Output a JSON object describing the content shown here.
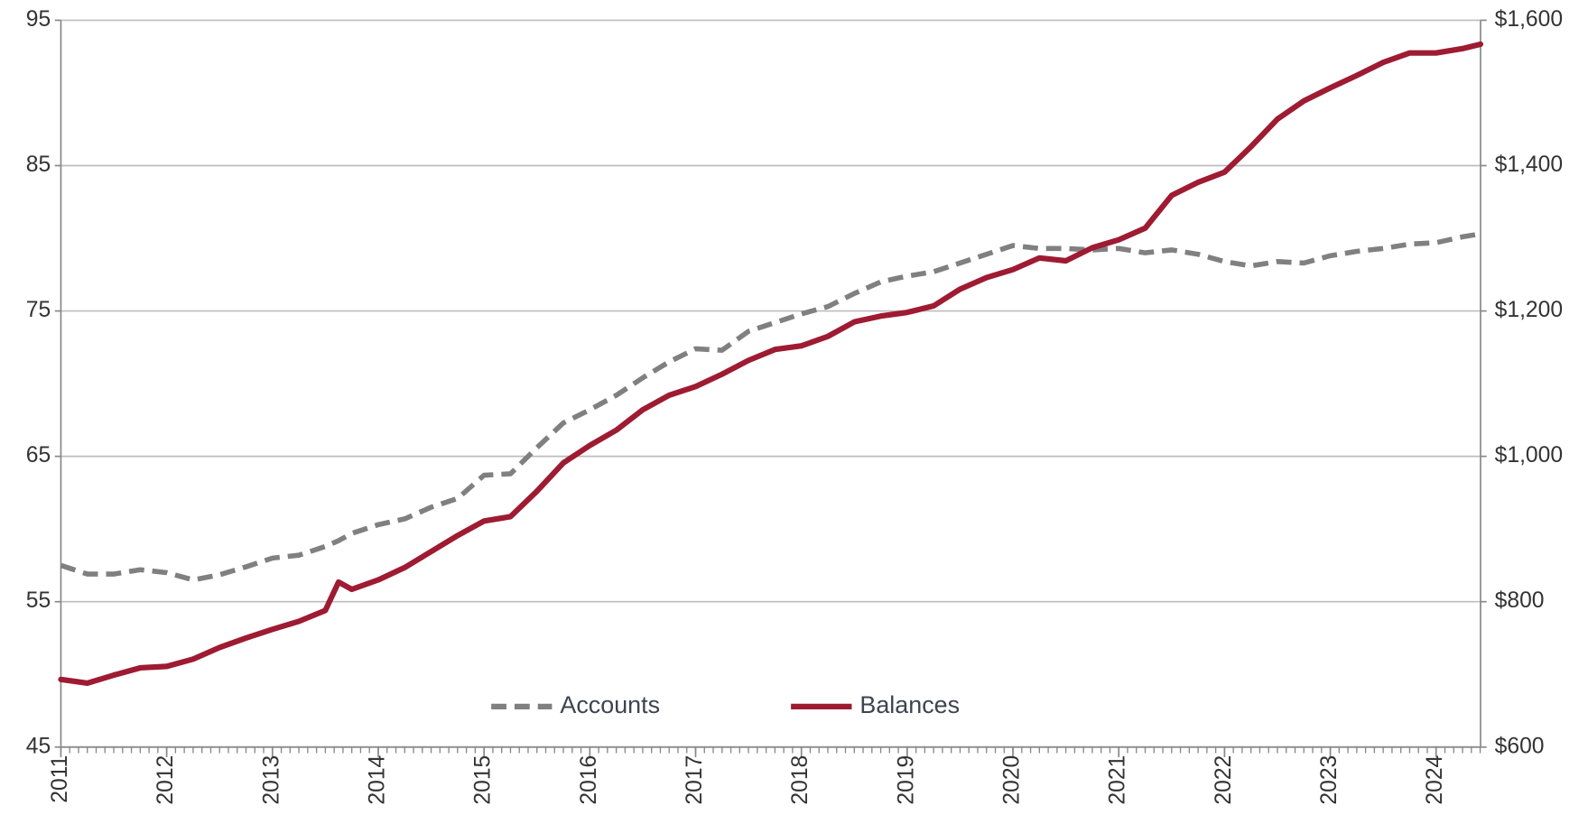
{
  "chart_data": {
    "type": "line",
    "x": [
      2011,
      2011.25,
      2011.5,
      2011.75,
      2012,
      2012.25,
      2012.5,
      2012.75,
      2013,
      2013.25,
      2013.5,
      2013.625,
      2013.75,
      2014,
      2014.25,
      2014.5,
      2014.75,
      2015,
      2015.25,
      2015.5,
      2015.75,
      2016,
      2016.25,
      2016.5,
      2016.75,
      2017,
      2017.25,
      2017.5,
      2017.75,
      2018,
      2018.25,
      2018.5,
      2018.75,
      2019,
      2019.25,
      2019.5,
      2019.75,
      2020,
      2020.25,
      2020.5,
      2020.75,
      2021,
      2021.25,
      2021.5,
      2021.75,
      2022,
      2022.25,
      2022.5,
      2022.75,
      2023,
      2023.25,
      2023.5,
      2023.75,
      2024,
      2024.25,
      2024.42
    ],
    "series": [
      {
        "name": "Accounts",
        "color": "#808080",
        "dash": true,
        "values": [
          57.5,
          56.9,
          56.9,
          57.2,
          57.0,
          56.5,
          56.85,
          57.4,
          58.0,
          58.2,
          58.8,
          59.2,
          59.7,
          60.3,
          60.7,
          61.5,
          62.1,
          63.7,
          63.8,
          65.6,
          67.3,
          68.2,
          69.2,
          70.4,
          71.5,
          72.4,
          72.3,
          73.6,
          74.2,
          74.8,
          75.3,
          76.2,
          77.0,
          77.4,
          77.7,
          78.3,
          78.9,
          79.5,
          79.3,
          79.3,
          79.2,
          79.3,
          79.0,
          79.2,
          78.9,
          78.4,
          78.1,
          78.4,
          78.3,
          78.8,
          79.1,
          79.3,
          79.6,
          79.7,
          80.1,
          80.3
        ]
      },
      {
        "name": "Balances",
        "color": "#9e1b32",
        "dash": false,
        "axis": "y2",
        "values": [
          693,
          688,
          699,
          709,
          711,
          721,
          737,
          750,
          762,
          773,
          788,
          827,
          817,
          830,
          847,
          869,
          891,
          911,
          917,
          952,
          991,
          1015,
          1036,
          1064,
          1084,
          1096,
          1113,
          1132,
          1147,
          1152,
          1165,
          1185,
          1193,
          1198,
          1207,
          1230,
          1246,
          1257,
          1273,
          1269,
          1287,
          1298,
          1314,
          1359,
          1377,
          1391,
          1426,
          1464,
          1489,
          1507,
          1524,
          1542,
          1555,
          1555,
          1561,
          1567
        ]
      }
    ],
    "xlim": [
      2011,
      2024.42
    ],
    "xticks": [
      2011,
      2012,
      2013,
      2014,
      2015,
      2016,
      2017,
      2018,
      2019,
      2020,
      2021,
      2022,
      2023,
      2024
    ],
    "ylim": [
      45,
      95
    ],
    "yticks": [
      45,
      55,
      65,
      75,
      85,
      95
    ],
    "y2lim": [
      600,
      1600
    ],
    "y2ticks": [
      {
        "value": 600,
        "label": "$600"
      },
      {
        "value": 800,
        "label": "$800"
      },
      {
        "value": 1000,
        "label": "$1,000"
      },
      {
        "value": 1200,
        "label": "$1,200"
      },
      {
        "value": 1400,
        "label": "$1,400"
      },
      {
        "value": 1600,
        "label": "$1,600"
      }
    ],
    "grid": true,
    "legend": "lower center"
  }
}
